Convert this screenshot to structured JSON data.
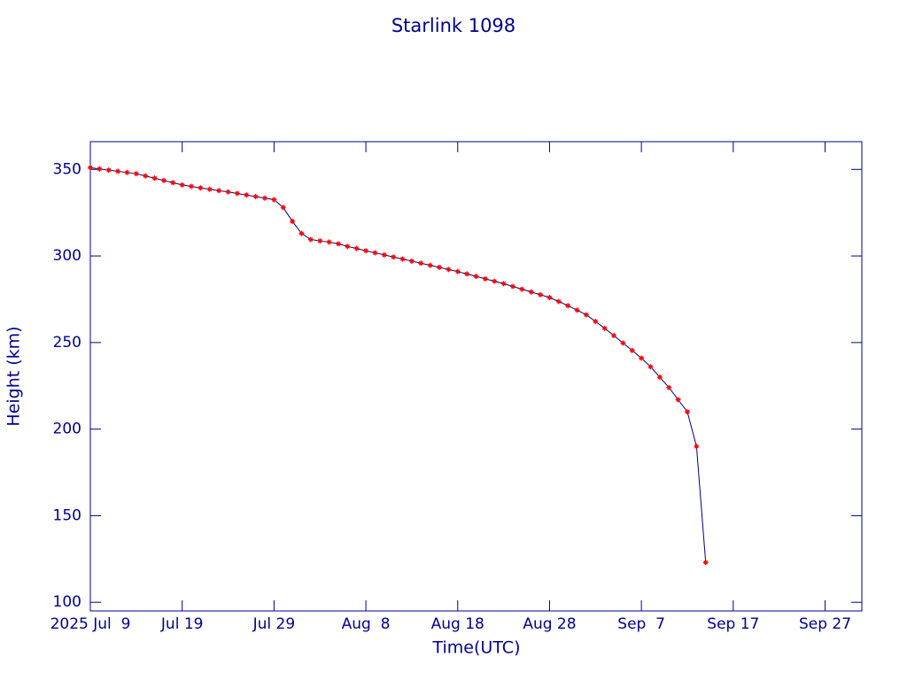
{
  "chart_data": {
    "type": "line",
    "title": "Starlink 1098",
    "x_label": "Time(UTC)",
    "y_label": "Height (km)",
    "x": [
      "2025-07-09",
      "2025-07-10",
      "2025-07-11",
      "2025-07-12",
      "2025-07-13",
      "2025-07-14",
      "2025-07-15",
      "2025-07-16",
      "2025-07-17",
      "2025-07-18",
      "2025-07-19",
      "2025-07-20",
      "2025-07-21",
      "2025-07-22",
      "2025-07-23",
      "2025-07-24",
      "2025-07-25",
      "2025-07-26",
      "2025-07-27",
      "2025-07-28",
      "2025-07-29",
      "2025-07-30",
      "2025-07-31",
      "2025-08-01",
      "2025-08-02",
      "2025-08-03",
      "2025-08-04",
      "2025-08-05",
      "2025-08-06",
      "2025-08-07",
      "2025-08-08",
      "2025-08-09",
      "2025-08-10",
      "2025-08-11",
      "2025-08-12",
      "2025-08-13",
      "2025-08-14",
      "2025-08-15",
      "2025-08-16",
      "2025-08-17",
      "2025-08-18",
      "2025-08-19",
      "2025-08-20",
      "2025-08-21",
      "2025-08-22",
      "2025-08-23",
      "2025-08-24",
      "2025-08-25",
      "2025-08-26",
      "2025-08-27",
      "2025-08-28",
      "2025-08-29",
      "2025-08-30",
      "2025-08-31",
      "2025-09-01",
      "2025-09-02",
      "2025-09-03",
      "2025-09-04",
      "2025-09-05",
      "2025-09-06",
      "2025-09-07",
      "2025-09-08",
      "2025-09-09",
      "2025-09-10",
      "2025-09-11",
      "2025-09-12",
      "2025-09-13",
      "2025-09-14"
    ],
    "series": [
      {
        "color": "#000080",
        "marker_color": "#ff0000",
        "values": [
          351,
          350.3,
          349.6,
          348.9,
          348.2,
          347.5,
          346.2,
          344.9,
          343.6,
          342.3,
          341,
          340.2,
          339.3,
          338.5,
          337.7,
          337,
          336.1,
          335.2,
          334.3,
          333.4,
          332.5,
          328,
          320,
          313,
          309.5,
          308.7,
          308,
          307,
          305.5,
          304.3,
          303,
          301.8,
          300.6,
          299.4,
          298.2,
          297,
          295.8,
          294.6,
          293.4,
          292.2,
          291,
          289.6,
          288.2,
          286.8,
          285.4,
          284,
          282.4,
          280.8,
          279.2,
          277.6,
          276,
          273.7,
          271.3,
          268.7,
          266,
          262.2,
          258.2,
          254,
          249.7,
          245.4,
          241,
          236,
          230,
          224,
          217,
          210,
          190,
          123
        ]
      }
    ],
    "xlim": [
      "2025-07-09",
      "2025-10-01"
    ],
    "xticks": [
      {
        "value": "2025-07-09",
        "label": "2025 Jul  9"
      },
      {
        "value": "2025-07-19",
        "label": "Jul 19"
      },
      {
        "value": "2025-07-29",
        "label": "Jul 29"
      },
      {
        "value": "2025-08-08",
        "label": "Aug  8"
      },
      {
        "value": "2025-08-18",
        "label": "Aug 18"
      },
      {
        "value": "2025-08-28",
        "label": "Aug 28"
      },
      {
        "value": "2025-09-07",
        "label": "Sep  7"
      },
      {
        "value": "2025-09-17",
        "label": "Sep 17"
      },
      {
        "value": "2025-09-27",
        "label": "Sep 27"
      }
    ],
    "ylim": [
      95,
      366
    ],
    "yticks": [
      100,
      150,
      200,
      250,
      300,
      350
    ],
    "axis_color": "#00008b"
  }
}
